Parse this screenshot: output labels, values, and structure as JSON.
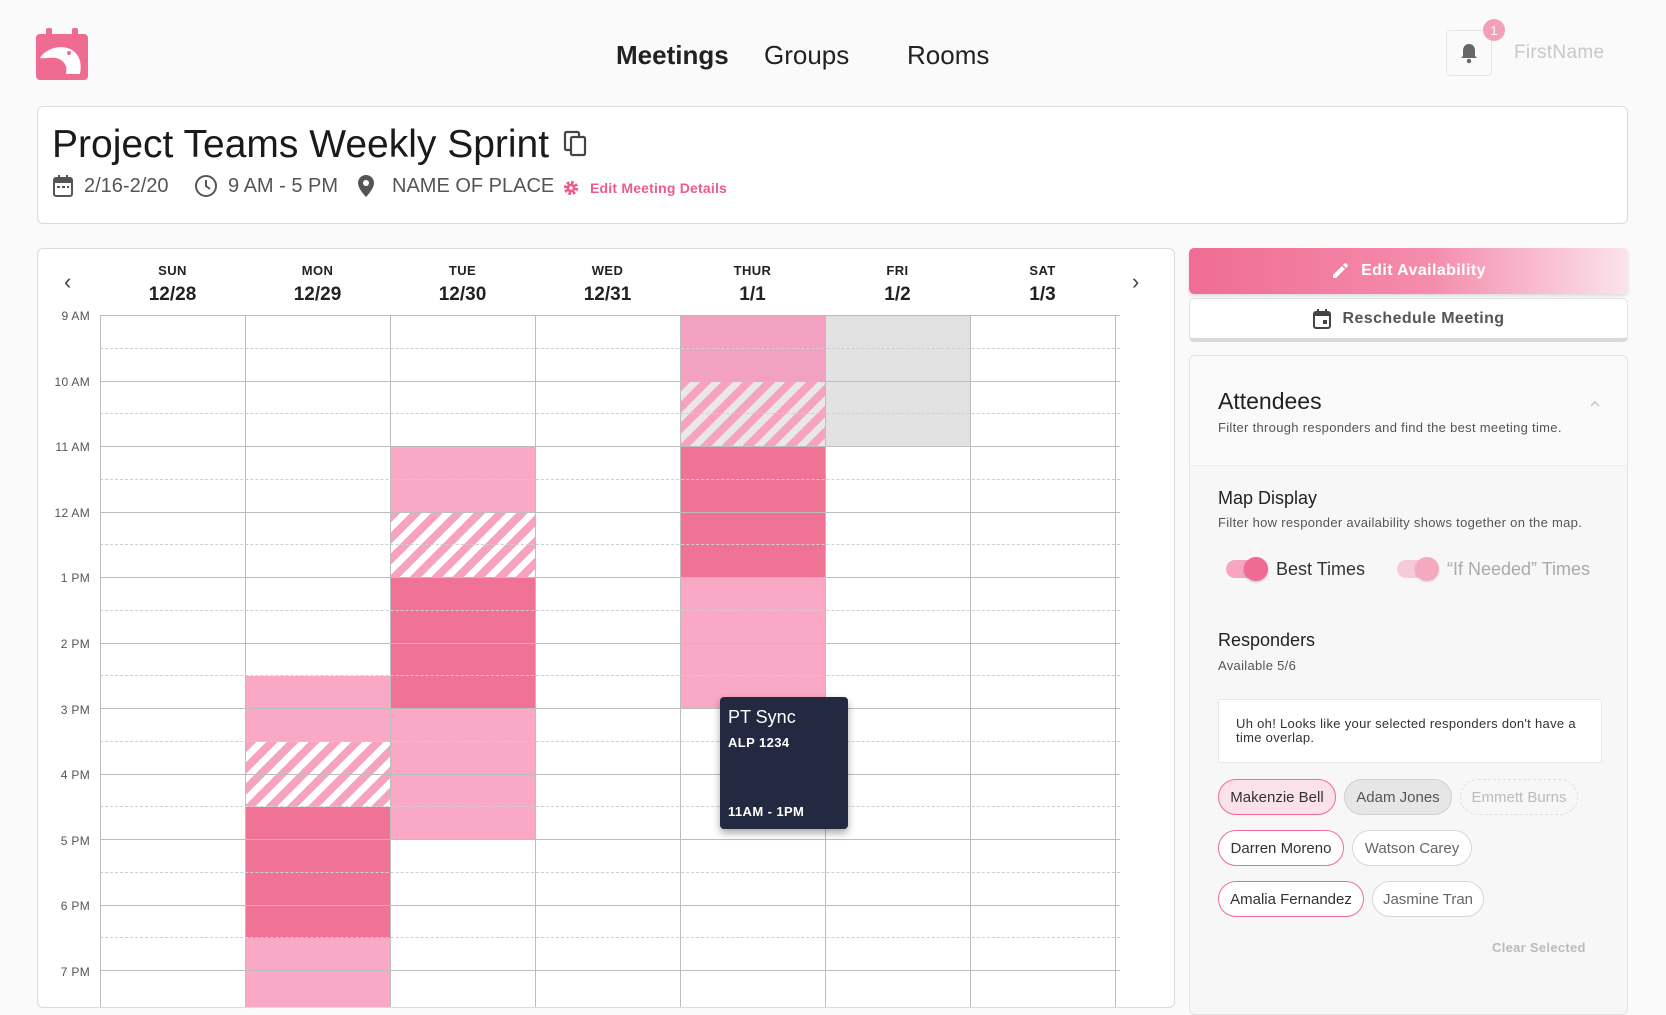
{
  "nav": {
    "items": [
      "Meetings",
      "Groups",
      "Rooms"
    ],
    "active_index": 0
  },
  "user": {
    "name": "FirstName",
    "notification_count": "1"
  },
  "meeting": {
    "title": "Project Teams Weekly Sprint",
    "dates": "2/16-2/20",
    "time": "9 AM - 5 PM",
    "place": "NAME OF PLACE",
    "edit_label": "Edit Meeting Details"
  },
  "calendar": {
    "days": [
      {
        "name": "SUN",
        "date": "12/28"
      },
      {
        "name": "MON",
        "date": "12/29"
      },
      {
        "name": "TUE",
        "date": "12/30"
      },
      {
        "name": "WED",
        "date": "12/31"
      },
      {
        "name": "THUR",
        "date": "1/1"
      },
      {
        "name": "FRI",
        "date": "1/2"
      },
      {
        "name": "SAT",
        "date": "1/3"
      }
    ],
    "hours": [
      "9 AM",
      "10 AM",
      "11 AM",
      "12 AM",
      "1 PM",
      "2 PM",
      "3 PM",
      "4 PM",
      "5 PM",
      "6 PM",
      "7 PM"
    ],
    "event": {
      "title": "PT Sync",
      "room": "ALP 1234",
      "time": "11AM - 1PM"
    }
  },
  "actions": {
    "edit_availability": "Edit Availability",
    "reschedule": "Reschedule Meeting"
  },
  "attendees": {
    "title": "Attendees",
    "subtitle": "Filter through responders and find the best meeting time.",
    "map_title": "Map Display",
    "map_subtitle": "Filter how responder availability shows together on the map.",
    "toggle_best": "Best Times",
    "toggle_if_needed": "“If Needed” Times",
    "responders_title": "Responders",
    "responders_count": "Available 5/6",
    "warning": "Uh oh! Looks like your selected responders don't have a time overlap.",
    "people": [
      "Makenzie Bell",
      "Adam Jones",
      "Emmett Burns",
      "Darren Moreno",
      "Watson Carey",
      "Amalia Fernandez",
      "Jasmine Tran"
    ],
    "clear_label": "Clear Selected"
  },
  "colors": {
    "accent": "#f06c94",
    "event_bg": "#222940",
    "availability_light": "#f9a8c6",
    "availability_dark": "#f07396"
  }
}
